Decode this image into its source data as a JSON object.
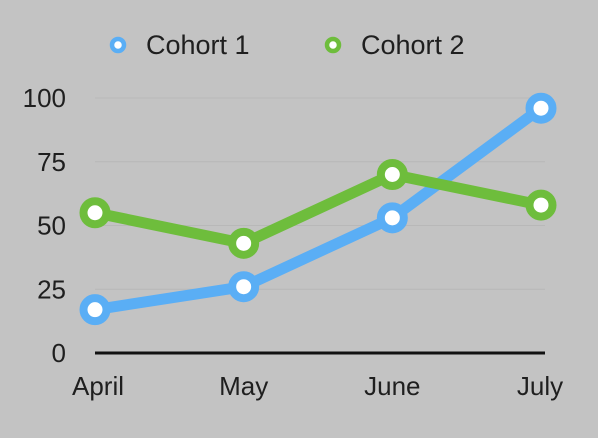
{
  "chart_data": {
    "type": "line",
    "categories": [
      "April",
      "May",
      "June",
      "July"
    ],
    "series": [
      {
        "name": "Cohort 1",
        "color": "#5aaef5",
        "values": [
          17,
          26,
          53,
          96
        ]
      },
      {
        "name": "Cohort 2",
        "color": "#6ebd3c",
        "values": [
          55,
          43,
          70,
          58
        ]
      }
    ],
    "ylim": [
      0,
      100
    ],
    "yticks": [
      "0",
      "25",
      "50",
      "75",
      "100"
    ],
    "grid": true,
    "legend_position": "top-center"
  }
}
